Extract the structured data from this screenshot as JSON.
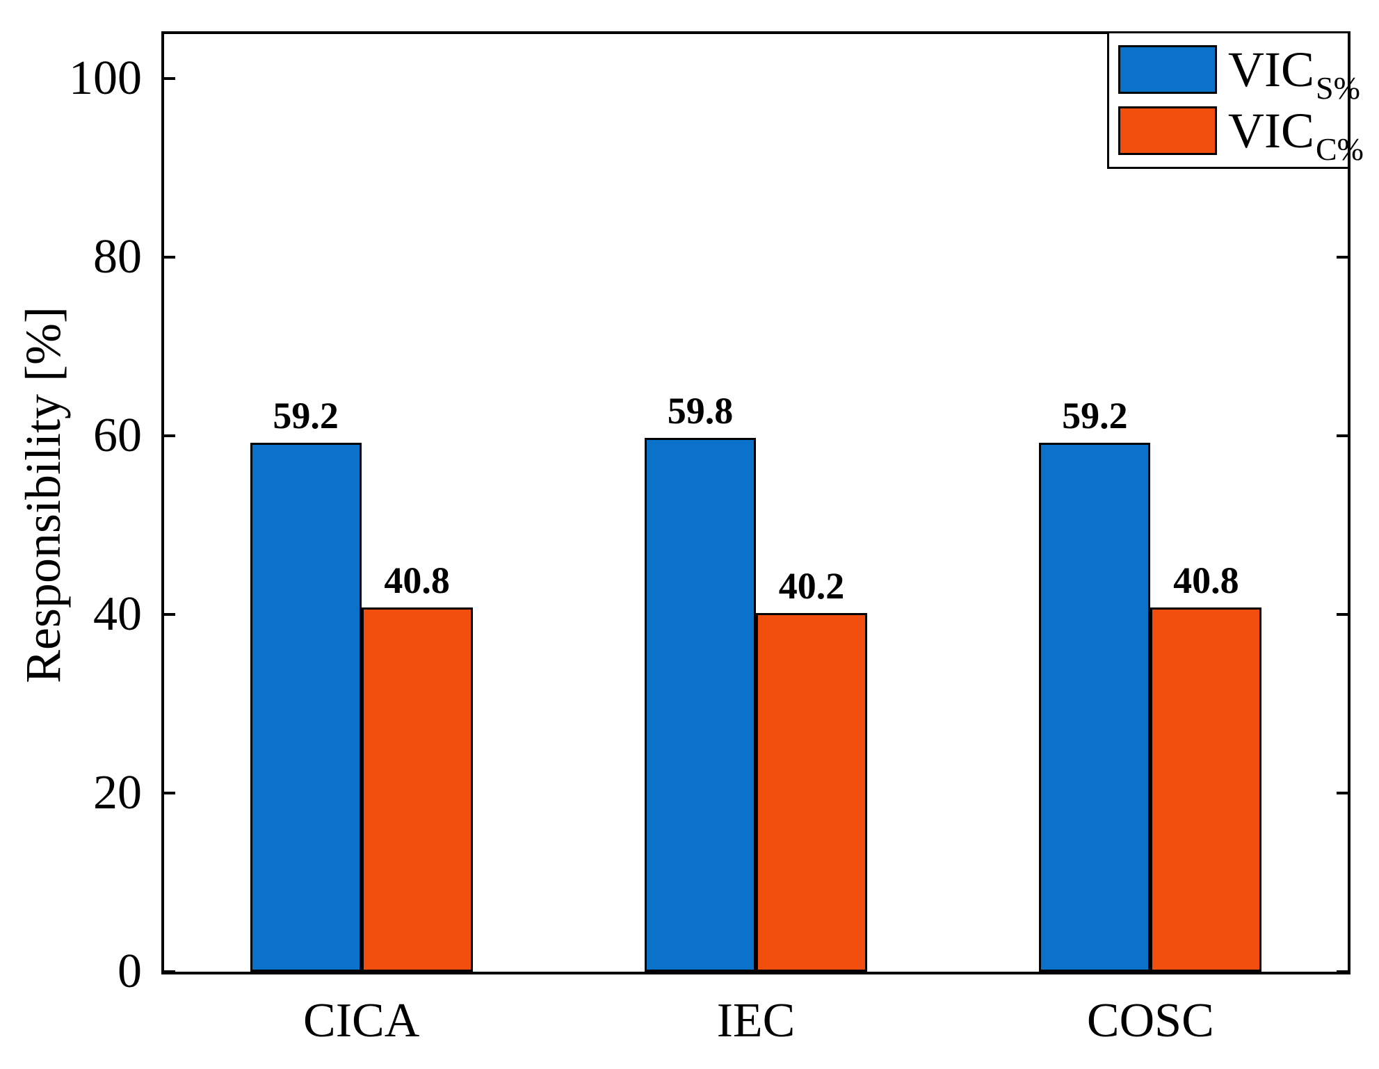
{
  "chart_data": {
    "type": "bar",
    "categories": [
      "CICA",
      "IEC",
      "COSC"
    ],
    "series": [
      {
        "name": "VIC_S%",
        "color": "#0a72c8",
        "values": [
          59.2,
          59.8,
          59.2
        ]
      },
      {
        "name": "VIC_C%",
        "color": "#f24e0e",
        "values": [
          40.8,
          40.2,
          40.8
        ]
      }
    ],
    "title": "",
    "xlabel": "",
    "ylabel": "Responsibility [%]",
    "yticks": [
      0,
      20,
      40,
      60,
      80,
      100
    ],
    "ylim": [
      0,
      105
    ],
    "grid": false,
    "bar_labels": true,
    "legend_position": "top-right",
    "frame_color": "#000000",
    "background_color": "#ffffff"
  },
  "legend": {
    "items": [
      {
        "main": "VIC",
        "sub": "S%"
      },
      {
        "main": "VIC",
        "sub": "C%"
      }
    ]
  }
}
